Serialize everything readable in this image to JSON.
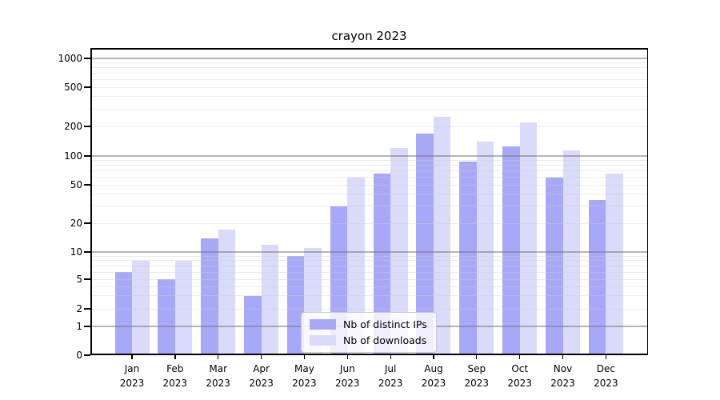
{
  "title": "crayon 2023",
  "chart_data": {
    "type": "bar",
    "title": "crayon 2023",
    "categories": [
      "Jan 2023",
      "Feb 2023",
      "Mar 2023",
      "Apr 2023",
      "May 2023",
      "Jun 2023",
      "Jul 2023",
      "Aug 2023",
      "Sep 2023",
      "Oct 2023",
      "Nov 2023",
      "Dec 2023"
    ],
    "series": [
      {
        "name": "Nb of distinct IPs",
        "color": "#a8a8f8",
        "values": [
          6,
          5,
          14,
          3,
          9,
          30,
          65,
          170,
          88,
          125,
          60,
          35
        ]
      },
      {
        "name": "Nb of downloads",
        "color": "#dadafa",
        "values": [
          8,
          8,
          17,
          12,
          11,
          60,
          120,
          250,
          140,
          220,
          115,
          65
        ]
      }
    ],
    "xlabel": "",
    "ylabel": "",
    "yscale": "symlog",
    "yticks": [
      0,
      1,
      2,
      5,
      10,
      20,
      50,
      100,
      200,
      500,
      1000
    ],
    "ylim": [
      0,
      1300
    ],
    "grid": true,
    "legend_position": "lower center"
  },
  "legend": {
    "items": [
      {
        "label": "Nb of distinct IPs",
        "color": "#a8a8f8"
      },
      {
        "label": "Nb of downloads",
        "color": "#dadafa"
      }
    ]
  },
  "colors": {
    "ips_bar": "#a8a8f8",
    "downloads_bar": "#dadafa",
    "spine": "#000000",
    "background": "#ffffff",
    "legend_border": "#cccccc"
  }
}
